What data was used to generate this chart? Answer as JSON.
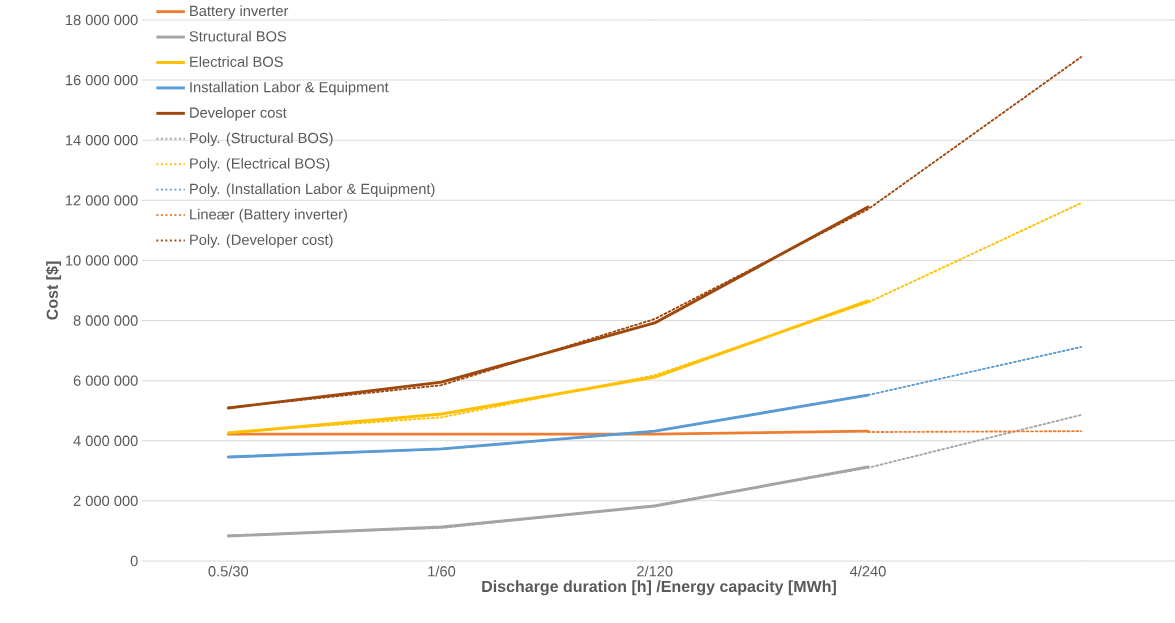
{
  "chart_data": {
    "type": "line",
    "xlabel": "Discharge duration [h] /Energy capacity [MWh]",
    "ylabel": "Cost [$]",
    "categories": [
      "0.5/30",
      "1/60",
      "2/120",
      "4/240",
      null
    ],
    "ylim": [
      0,
      18000000
    ],
    "yticks": [
      {
        "value": 0,
        "label": "0"
      },
      {
        "value": 2000000,
        "label": "2 000 000"
      },
      {
        "value": 4000000,
        "label": "4 000 000"
      },
      {
        "value": 6000000,
        "label": "6 000 000"
      },
      {
        "value": 8000000,
        "label": "8 000 000"
      },
      {
        "value": 10000000,
        "label": "10 000 000"
      },
      {
        "value": 12000000,
        "label": "12 000 000"
      },
      {
        "value": 14000000,
        "label": "14 000 000"
      },
      {
        "value": 16000000,
        "label": "16 000 000"
      },
      {
        "value": 18000000,
        "label": "18 000 000"
      }
    ],
    "grid": "y",
    "legend": "top left",
    "series": [
      {
        "name": "Battery inverter",
        "color": "#ed7d31",
        "line_style": "solid",
        "values": [
          4220000,
          4220000,
          4220000,
          4320000,
          null
        ]
      },
      {
        "name": "Structural BOS",
        "color": "#a5a5a5",
        "line_style": "solid",
        "values": [
          830000,
          1130000,
          1830000,
          3130000,
          null
        ]
      },
      {
        "name": "Electrical BOS",
        "color": "#ffc000",
        "line_style": "solid",
        "values": [
          4260000,
          4890000,
          6120000,
          8650000,
          null
        ]
      },
      {
        "name": "Installation Labor & Equipment",
        "color": "#5b9bd5",
        "line_style": "solid",
        "values": [
          3460000,
          3730000,
          4320000,
          5520000,
          null
        ]
      },
      {
        "name": "Developer cost",
        "color": "#9e480e",
        "line_style": "solid",
        "values": [
          5090000,
          5950000,
          7920000,
          11780000,
          null
        ]
      },
      {
        "name": "Poly. (Structural BOS)",
        "color": "#a5a5a5",
        "line_style": "dotted",
        "values": [
          850000,
          1100000,
          1850000,
          3100000,
          4860000
        ]
      },
      {
        "name": "Poly. (Electrical BOS)",
        "color": "#ffc000",
        "line_style": "dotted",
        "values": [
          4280000,
          4780000,
          6180000,
          8600000,
          11910000
        ]
      },
      {
        "name": "Poly. (Installation Labor & Equipment)",
        "color": "#5b9bd5",
        "line_style": "dotted",
        "values": [
          3460000,
          3720000,
          4320000,
          5520000,
          7120000
        ]
      },
      {
        "name": "Lineær (Battery inverter)",
        "color": "#ed7d31",
        "line_style": "dotted",
        "values": [
          null,
          null,
          null,
          4290000,
          4320000
        ]
      },
      {
        "name": "Poly. (Developer cost)",
        "color": "#9e480e",
        "line_style": "dotted",
        "values": [
          5100000,
          5850000,
          8050000,
          11700000,
          16770000
        ]
      }
    ]
  }
}
